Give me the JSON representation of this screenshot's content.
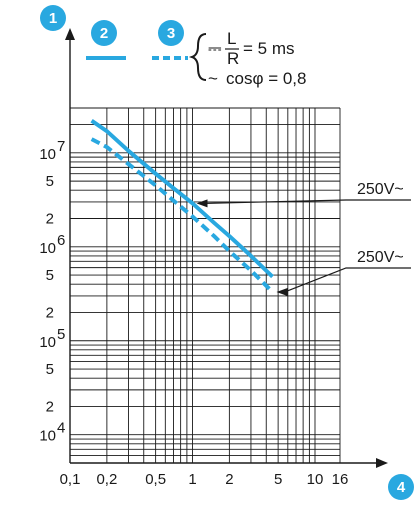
{
  "markers": {
    "y_axis": "1",
    "curve_dc": "2",
    "curve_ac": "3",
    "x_axis": "4"
  },
  "legend": {
    "dc_symbol": "⎓",
    "dc_L": "L",
    "dc_R": "R",
    "dc_value": "= 5 ms",
    "ac_symbol": "~",
    "ac_text": "cosφ = 0,8"
  },
  "colors": {
    "accent": "#29a8e0",
    "grid": "#1a1a1a"
  },
  "chart_data": {
    "type": "line",
    "x_scale": "log",
    "y_scale": "log",
    "xlim": [
      0.1,
      16
    ],
    "ylim": [
      5000,
      30000000
    ],
    "grid": true,
    "x_ticks": [
      {
        "v": 0.1,
        "label": "0,1"
      },
      {
        "v": 0.2,
        "label": "0,2"
      },
      {
        "v": 0.5,
        "label": "0,5"
      },
      {
        "v": 1,
        "label": "1"
      },
      {
        "v": 2,
        "label": "2"
      },
      {
        "v": 5,
        "label": "5"
      },
      {
        "v": 10,
        "label": "10"
      },
      {
        "v": 16,
        "label": "16"
      }
    ],
    "y_ticks": [
      {
        "v": 10000000,
        "base": "10",
        "exp": "7"
      },
      {
        "v": 5000000,
        "label": "5"
      },
      {
        "v": 2000000,
        "label": "2"
      },
      {
        "v": 1000000,
        "base": "10",
        "exp": "6"
      },
      {
        "v": 500000,
        "label": "5"
      },
      {
        "v": 200000,
        "label": "2"
      },
      {
        "v": 100000,
        "base": "10",
        "exp": "5"
      },
      {
        "v": 50000,
        "label": "5"
      },
      {
        "v": 20000,
        "label": "2"
      },
      {
        "v": 10000,
        "base": "10",
        "exp": "4"
      }
    ],
    "series": [
      {
        "marker": "2",
        "style": "solid",
        "x": [
          0.15,
          0.2,
          0.3,
          0.5,
          0.7,
          1,
          1.5,
          2,
          3,
          4.5
        ],
        "y": [
          22000000,
          17000000,
          10500000,
          6000000,
          4200000,
          2900000,
          1800000,
          1300000,
          800000,
          480000
        ]
      },
      {
        "marker": "3",
        "style": "dashed",
        "x": [
          0.15,
          0.2,
          0.3,
          0.5,
          0.7,
          1,
          1.5,
          2,
          3,
          4.5
        ],
        "y": [
          14000000,
          11500000,
          7600000,
          4500000,
          3100000,
          2100000,
          1300000,
          900000,
          560000,
          330000
        ]
      }
    ],
    "annotations": [
      {
        "label": "250V~",
        "target_series": 0,
        "x_at": 1.0
      },
      {
        "label": "250V~",
        "target_series": 1,
        "x_at": 4.5
      }
    ]
  }
}
